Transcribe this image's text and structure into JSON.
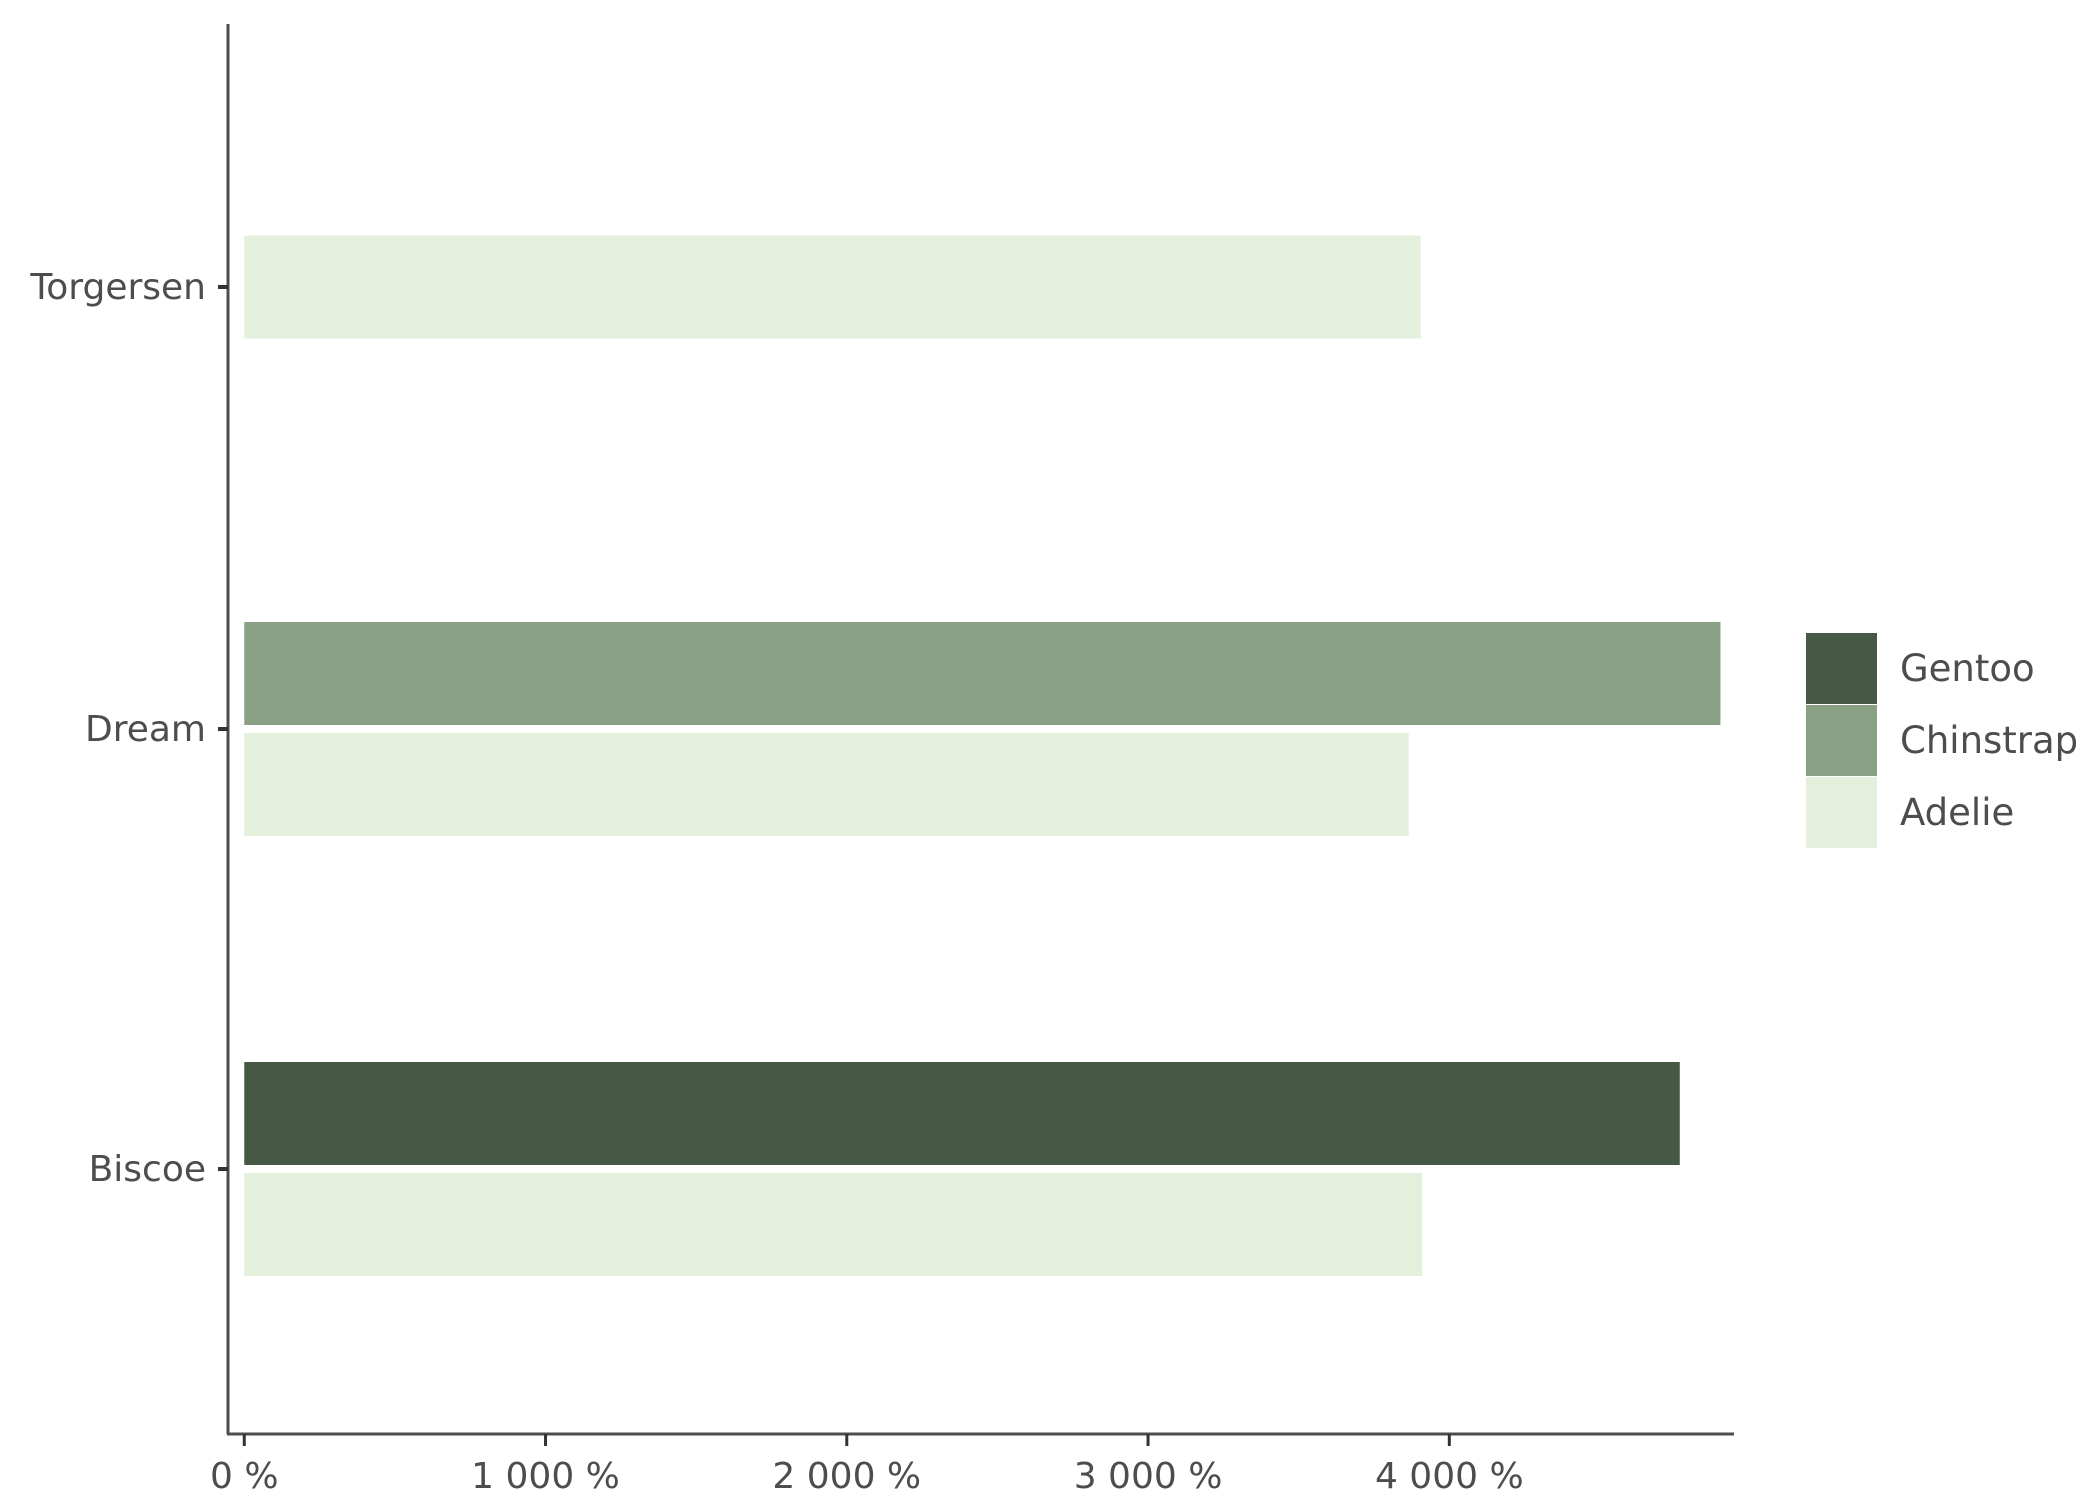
{
  "chart_data": {
    "type": "bar",
    "orientation": "horizontal",
    "position": "dodge",
    "categories": [
      "Torgersen",
      "Dream",
      "Biscoe"
    ],
    "x_ticks": [
      0,
      1000,
      2000,
      3000,
      4000
    ],
    "x_tick_labels": [
      "0 %",
      "1 000 %",
      "2 000 %",
      "3 000 %",
      "4 000 %"
    ],
    "xlim": [
      -54,
      4945
    ],
    "grid": false,
    "legend_position": "right",
    "series": [
      {
        "name": "Gentoo",
        "color": "#465945",
        "values": [
          null,
          null,
          4765
        ]
      },
      {
        "name": "Chinstrap",
        "color": "#8aa085",
        "values": [
          null,
          4900,
          null
        ]
      },
      {
        "name": "Adelie",
        "color": "#e4f0dc",
        "values": [
          3905,
          3865,
          3910
        ]
      }
    ],
    "legend": [
      "Gentoo",
      "Chinstrap",
      "Adelie"
    ],
    "title": "",
    "xlabel": "",
    "ylabel": ""
  }
}
